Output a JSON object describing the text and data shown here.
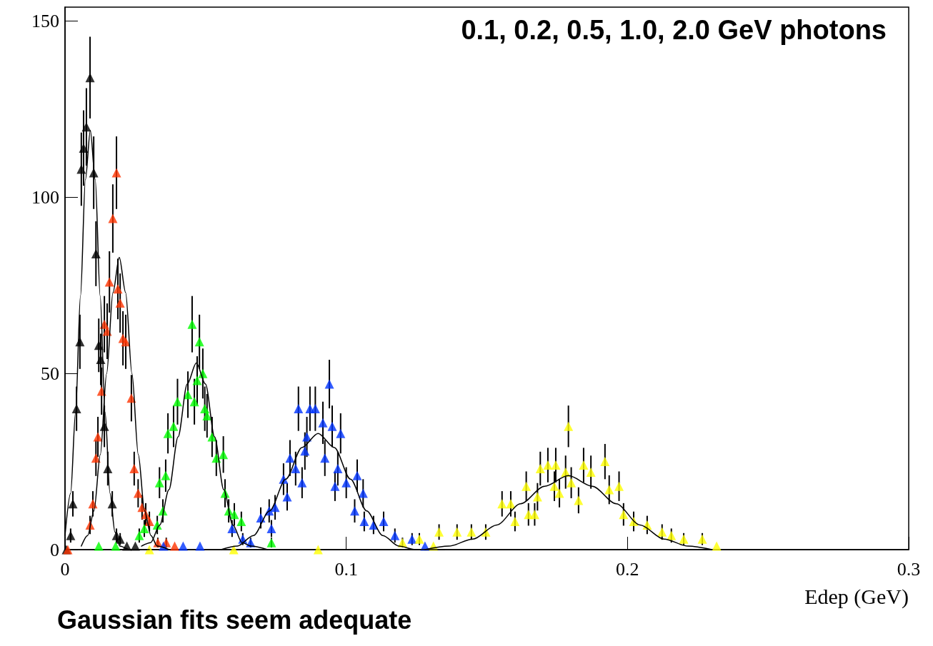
{
  "chart_data": {
    "type": "scatter",
    "title": "0.1, 0.2, 0.5, 1.0, 2.0 GeV photons",
    "xlabel": "Edep (GeV)",
    "annotations": [
      "Gaussian fits seem adequate"
    ],
    "xlim": [
      0,
      0.3
    ],
    "xticks": [
      0,
      0.1,
      0.2,
      0.3
    ],
    "ylim": [
      0,
      154
    ],
    "yticks": [
      0,
      50,
      100,
      150
    ],
    "grid": false,
    "marker": "triangle",
    "series": [
      {
        "color": "#000000",
        "x": [
          0.0005,
          0.002,
          0.0028,
          0.0041,
          0.0053,
          0.0058,
          0.0066,
          0.0076,
          0.0089,
          0.0102,
          0.011,
          0.012,
          0.0127,
          0.014,
          0.0152,
          0.0168,
          0.0183,
          0.0196,
          0.022,
          0.025
        ],
        "values": [
          0,
          4,
          13,
          40,
          59,
          108,
          114,
          120,
          134,
          107,
          84,
          58,
          54,
          35,
          23,
          13,
          4,
          3,
          1,
          1
        ],
        "errors": [
          null,
          2,
          3.6,
          6.3,
          7.7,
          10.4,
          10.7,
          11,
          11.6,
          10.3,
          9.2,
          7.6,
          7.3,
          5.9,
          4.8,
          3.6,
          2,
          1.7,
          null,
          null
        ]
      },
      {
        "color": "#ff3300",
        "x": [
          0.001,
          0.0089,
          0.0099,
          0.011,
          0.0117,
          0.013,
          0.014,
          0.015,
          0.0158,
          0.017,
          0.0183,
          0.0188,
          0.0196,
          0.0206,
          0.0216,
          0.0236,
          0.0246,
          0.026,
          0.0274,
          0.0287,
          0.03,
          0.033,
          0.036,
          0.039
        ],
        "values": [
          0,
          7,
          13,
          26,
          32,
          45,
          64,
          62,
          76,
          94,
          107,
          74,
          70,
          60,
          59,
          43,
          23,
          16,
          12,
          10,
          8,
          2,
          2,
          1
        ],
        "errors": [
          null,
          2.6,
          3.6,
          5.1,
          5.7,
          6.7,
          8,
          7.9,
          8.7,
          9.7,
          10.3,
          8.6,
          8.4,
          7.7,
          7.7,
          6.6,
          4.8,
          4,
          3.5,
          3.2,
          2.8,
          1.4,
          1.4,
          null
        ]
      },
      {
        "color": "#00ff00",
        "x": [
          0.012,
          0.018,
          0.0264,
          0.0282,
          0.0328,
          0.0336,
          0.0348,
          0.0358,
          0.0366,
          0.0386,
          0.04,
          0.0437,
          0.0452,
          0.046,
          0.047,
          0.0478,
          0.049,
          0.0497,
          0.0505,
          0.0523,
          0.0538,
          0.0563,
          0.0569,
          0.0582,
          0.0602,
          0.0627,
          0.0734
        ],
        "values": [
          1,
          1,
          4,
          6,
          7,
          19,
          11,
          21,
          33,
          35,
          42,
          44,
          64,
          42,
          48,
          59,
          50,
          40,
          38,
          32,
          26,
          27,
          16,
          11,
          10,
          8,
          2
        ],
        "errors": [
          null,
          null,
          2,
          2.4,
          2.6,
          4.4,
          3.3,
          4.6,
          5.7,
          5.9,
          6.5,
          6.6,
          8,
          6.5,
          6.9,
          7.7,
          7.1,
          6.3,
          6.2,
          5.7,
          5.1,
          5.2,
          4,
          3.3,
          3.2,
          2.8,
          1.4
        ]
      },
      {
        "color": "#0033ff",
        "x": [
          0.035,
          0.042,
          0.048,
          0.0594,
          0.0632,
          0.066,
          0.0696,
          0.0726,
          0.0734,
          0.0747,
          0.0777,
          0.079,
          0.08,
          0.082,
          0.083,
          0.0843,
          0.0853,
          0.086,
          0.0871,
          0.089,
          0.0917,
          0.0924,
          0.094,
          0.095,
          0.096,
          0.097,
          0.098,
          0.1,
          0.103,
          0.1039,
          0.106,
          0.1064,
          0.1097,
          0.1133,
          0.1173,
          0.1234,
          0.128
        ],
        "values": [
          1,
          1,
          1,
          6,
          3,
          2,
          9,
          11,
          6,
          12,
          20,
          15,
          26,
          23,
          40,
          19,
          28,
          32,
          40,
          40,
          36,
          26,
          47,
          35,
          18,
          23,
          33,
          19,
          11,
          21,
          16,
          8,
          7,
          8,
          4,
          3,
          1
        ],
        "errors": [
          null,
          null,
          null,
          2.4,
          1.7,
          1.4,
          3,
          3.3,
          2.4,
          3.5,
          4.5,
          3.9,
          5.1,
          4.8,
          6.3,
          4.4,
          5.3,
          5.7,
          6.3,
          6.3,
          6,
          5.1,
          6.9,
          5.9,
          4.2,
          4.8,
          5.7,
          4.4,
          3.3,
          4.6,
          4,
          2.8,
          2.6,
          2.8,
          2,
          1.7,
          null
        ]
      },
      {
        "color": "#ffff00",
        "x": [
          0.03,
          0.06,
          0.09,
          0.12,
          0.126,
          0.131,
          0.133,
          0.1394,
          0.1445,
          0.1496,
          0.1554,
          0.1585,
          0.16,
          0.164,
          0.1648,
          0.167,
          0.168,
          0.169,
          0.1717,
          0.1745,
          0.174,
          0.1758,
          0.178,
          0.179,
          0.18,
          0.1826,
          0.1844,
          0.187,
          0.192,
          0.1935,
          0.197,
          0.1986,
          0.2022,
          0.207,
          0.2123,
          0.2156,
          0.22,
          0.2266,
          0.2317
        ],
        "values": [
          0,
          0,
          0,
          2,
          3,
          1,
          5,
          5,
          5,
          5,
          13,
          13,
          8,
          18,
          10,
          10,
          15,
          23,
          24,
          24,
          18,
          16,
          22,
          35,
          19,
          14,
          24,
          22,
          25,
          17,
          18,
          10,
          8,
          7,
          5,
          4,
          3,
          3,
          1
        ],
        "errors": [
          null,
          null,
          null,
          1.4,
          1.7,
          null,
          2.2,
          2.2,
          2.2,
          2.2,
          3.6,
          3.6,
          2.8,
          4.2,
          3.2,
          3.2,
          3.9,
          4.8,
          4.9,
          4.9,
          4.2,
          4,
          4.7,
          5.9,
          4.4,
          3.7,
          4.9,
          4.7,
          5,
          4.1,
          4.2,
          3.2,
          2.8,
          2.6,
          2.2,
          2,
          1.7,
          1.7,
          null
        ]
      },
      {
        "type": "line",
        "marker": "none",
        "color": "#000000",
        "x": [
          0.0,
          0.002,
          0.00375,
          0.0055,
          0.00725,
          0.009,
          0.01075,
          0.0125,
          0.01425,
          0.016,
          0.01775,
          0.0195,
          0.023,
          0.03
        ],
        "values": [
          4,
          16,
          39,
          72,
          105,
          119,
          105,
          72,
          39,
          16,
          5,
          1,
          0,
          0
        ]
      },
      {
        "type": "line",
        "marker": "none",
        "color": "#000000",
        "x": [
          0.0058,
          0.00805,
          0.0103,
          0.01255,
          0.0148,
          0.01705,
          0.0193,
          0.02155,
          0.0238,
          0.02605,
          0.0283,
          0.03055,
          0.0328,
          0.037
        ],
        "values": [
          1,
          4,
          11,
          27,
          50,
          73,
          83,
          73,
          50,
          27,
          11,
          4,
          1,
          0
        ]
      },
      {
        "type": "line",
        "marker": "none",
        "color": "#000000",
        "x": [
          0.0272,
          0.03045,
          0.0337,
          0.03695,
          0.0402,
          0.04345,
          0.0467,
          0.04995,
          0.0532,
          0.05645,
          0.0597,
          0.06295,
          0.0662,
          0.072
        ],
        "values": [
          1,
          2,
          7,
          17,
          32,
          47,
          53,
          47,
          32,
          17,
          7,
          2,
          1,
          0
        ]
      },
      {
        "type": "line",
        "marker": "none",
        "color": "#000000",
        "x": [
          0.0555,
          0.06125,
          0.067,
          0.07275,
          0.0785,
          0.08425,
          0.09,
          0.09575,
          0.1015,
          0.10725,
          0.113,
          0.11875,
          0.1245,
          0.135
        ],
        "values": [
          0,
          1,
          4,
          11,
          20,
          29,
          33,
          29,
          20,
          11,
          4,
          1,
          0,
          0
        ]
      },
      {
        "type": "line",
        "marker": "none",
        "color": "#000000",
        "x": [
          0.128,
          0.1365,
          0.145,
          0.1535,
          0.162,
          0.1705,
          0.179,
          0.1875,
          0.196,
          0.2045,
          0.213,
          0.2215,
          0.23
        ],
        "values": [
          0,
          1,
          3,
          7,
          13,
          18,
          21,
          18,
          13,
          7,
          3,
          1,
          0
        ]
      }
    ]
  }
}
